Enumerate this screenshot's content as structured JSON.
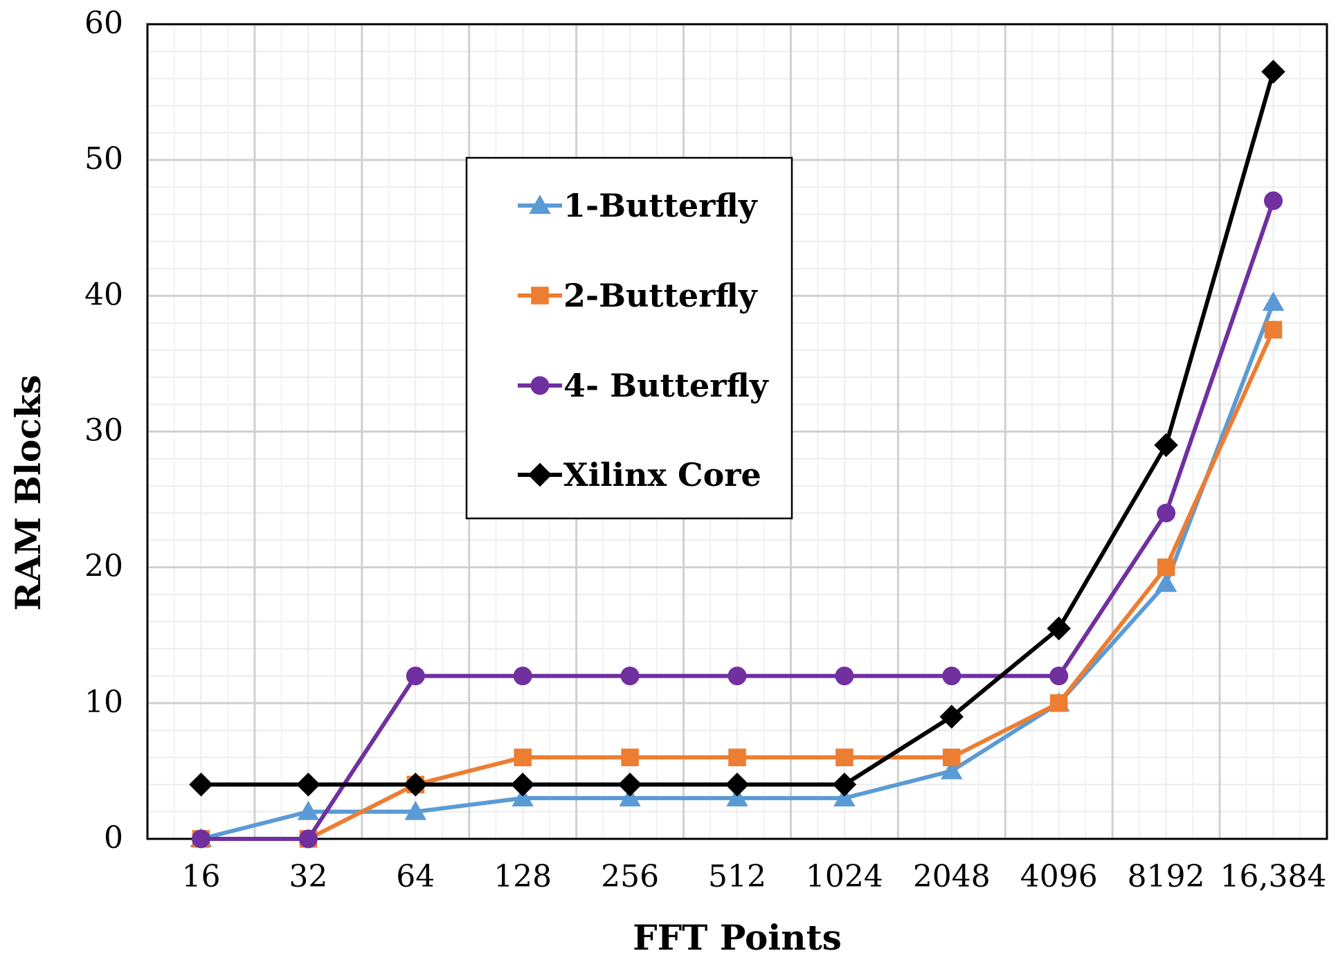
{
  "chart_data": {
    "type": "line",
    "title": "",
    "xlabel": "FFT Points",
    "ylabel": "RAM Blocks",
    "categories": [
      "16",
      "32",
      "64",
      "128",
      "256",
      "512",
      "1024",
      "2048",
      "4096",
      "8192",
      "16,384"
    ],
    "ylim": [
      0,
      60
    ],
    "yticks": [
      0,
      10,
      20,
      30,
      40,
      50,
      60
    ],
    "grid": true,
    "legend_position": "upper-center",
    "series": [
      {
        "name": "1-Butterfly",
        "color": "#5B9BD5",
        "marker": "triangle",
        "values": [
          0,
          2,
          2,
          3,
          3,
          3,
          3,
          5,
          10,
          18.8,
          39.5
        ]
      },
      {
        "name": "2-Butterfly",
        "color": "#ED7D31",
        "marker": "square",
        "values": [
          0,
          0,
          4,
          6,
          6,
          6,
          6,
          6,
          10,
          20,
          37.5
        ]
      },
      {
        "name": "4- Butterfly",
        "color": "#7030A0",
        "marker": "circle",
        "values": [
          0,
          0,
          12,
          12,
          12,
          12,
          12,
          12,
          12,
          24,
          47
        ]
      },
      {
        "name": "Xilinx Core",
        "color": "#000000",
        "marker": "diamond",
        "values": [
          4,
          4,
          4,
          4,
          4,
          4,
          4,
          9,
          15.5,
          29,
          56.5
        ]
      }
    ]
  }
}
